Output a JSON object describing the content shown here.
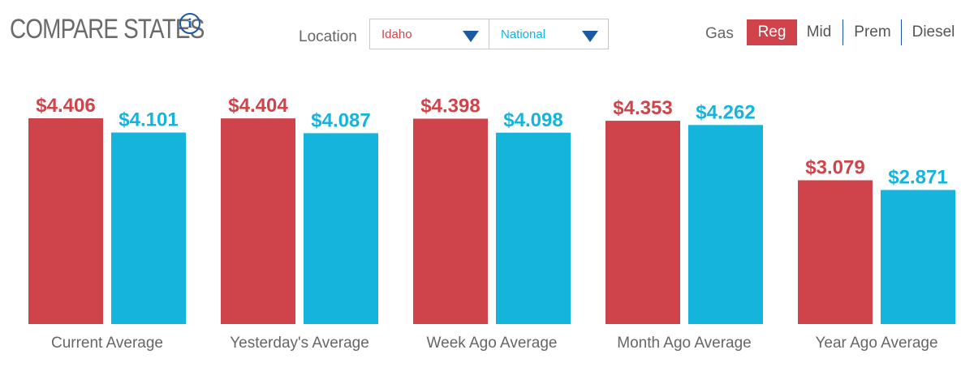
{
  "header": {
    "title": "COMPARE STATES",
    "info_icon": "info-icon",
    "location_label": "Location",
    "state_select": "Idaho",
    "compare_select": "National",
    "gas_label": "Gas",
    "grades": [
      "Reg",
      "Mid",
      "Prem",
      "Diesel"
    ],
    "active_grade": "Reg"
  },
  "colors": {
    "state": "#cf444a",
    "national": "#14b4dc",
    "accent": "#1b5aa2"
  },
  "chart_data": {
    "type": "bar",
    "categories": [
      "Current Average",
      "Yesterday's Average",
      "Week Ago Average",
      "Month Ago Average",
      "Year Ago Average"
    ],
    "series": [
      {
        "name": "Idaho",
        "values": [
          4.406,
          4.404,
          4.398,
          4.353,
          3.079
        ],
        "labels": [
          "$4.406",
          "$4.404",
          "$4.398",
          "$4.353",
          "$3.079"
        ]
      },
      {
        "name": "National",
        "values": [
          4.101,
          4.087,
          4.098,
          4.262,
          2.871
        ],
        "labels": [
          "$4.101",
          "$4.087",
          "$4.098",
          "$4.262",
          "$2.871"
        ]
      }
    ],
    "ylim": [
      0,
      4.406
    ],
    "legend": "none",
    "grid": false
  }
}
